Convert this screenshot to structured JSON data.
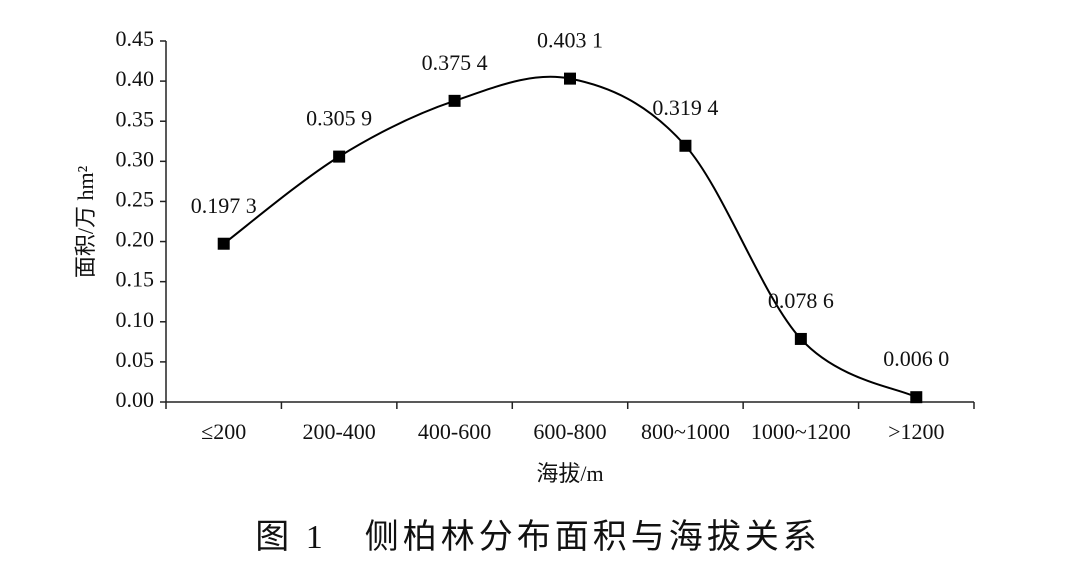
{
  "chart_data": {
    "type": "line",
    "smooth": true,
    "color": "#000000",
    "caption": "图 1　侧柏林分布面积与海拔关系",
    "x_label": "海拔/m",
    "y_label": "面积/万 hm²",
    "categories": [
      "≤200",
      "200-400",
      "400-600",
      "600-800",
      "800~1000",
      "1000~1200",
      ">1200"
    ],
    "values": [
      0.1973,
      0.3059,
      0.3754,
      0.4031,
      0.3194,
      0.0786,
      0.006
    ],
    "value_labels": [
      "0.197 3",
      "0.305 9",
      "0.375 4",
      "0.403 1",
      "0.319 4",
      "0.078 6",
      "0.006 0"
    ],
    "ylim": [
      0,
      0.45
    ],
    "yticks": [
      {
        "value": 0,
        "label": "0.00"
      },
      {
        "value": 0.05,
        "label": "0.05"
      },
      {
        "value": 0.1,
        "label": "0.10"
      },
      {
        "value": 0.15,
        "label": "0.15"
      },
      {
        "value": 0.2,
        "label": "0.20"
      },
      {
        "value": 0.25,
        "label": "0.25"
      },
      {
        "value": 0.3,
        "label": "0.30"
      },
      {
        "value": 0.35,
        "label": "0.35"
      },
      {
        "value": 0.4,
        "label": "0.40"
      },
      {
        "value": 0.45,
        "label": "0.45"
      }
    ]
  }
}
